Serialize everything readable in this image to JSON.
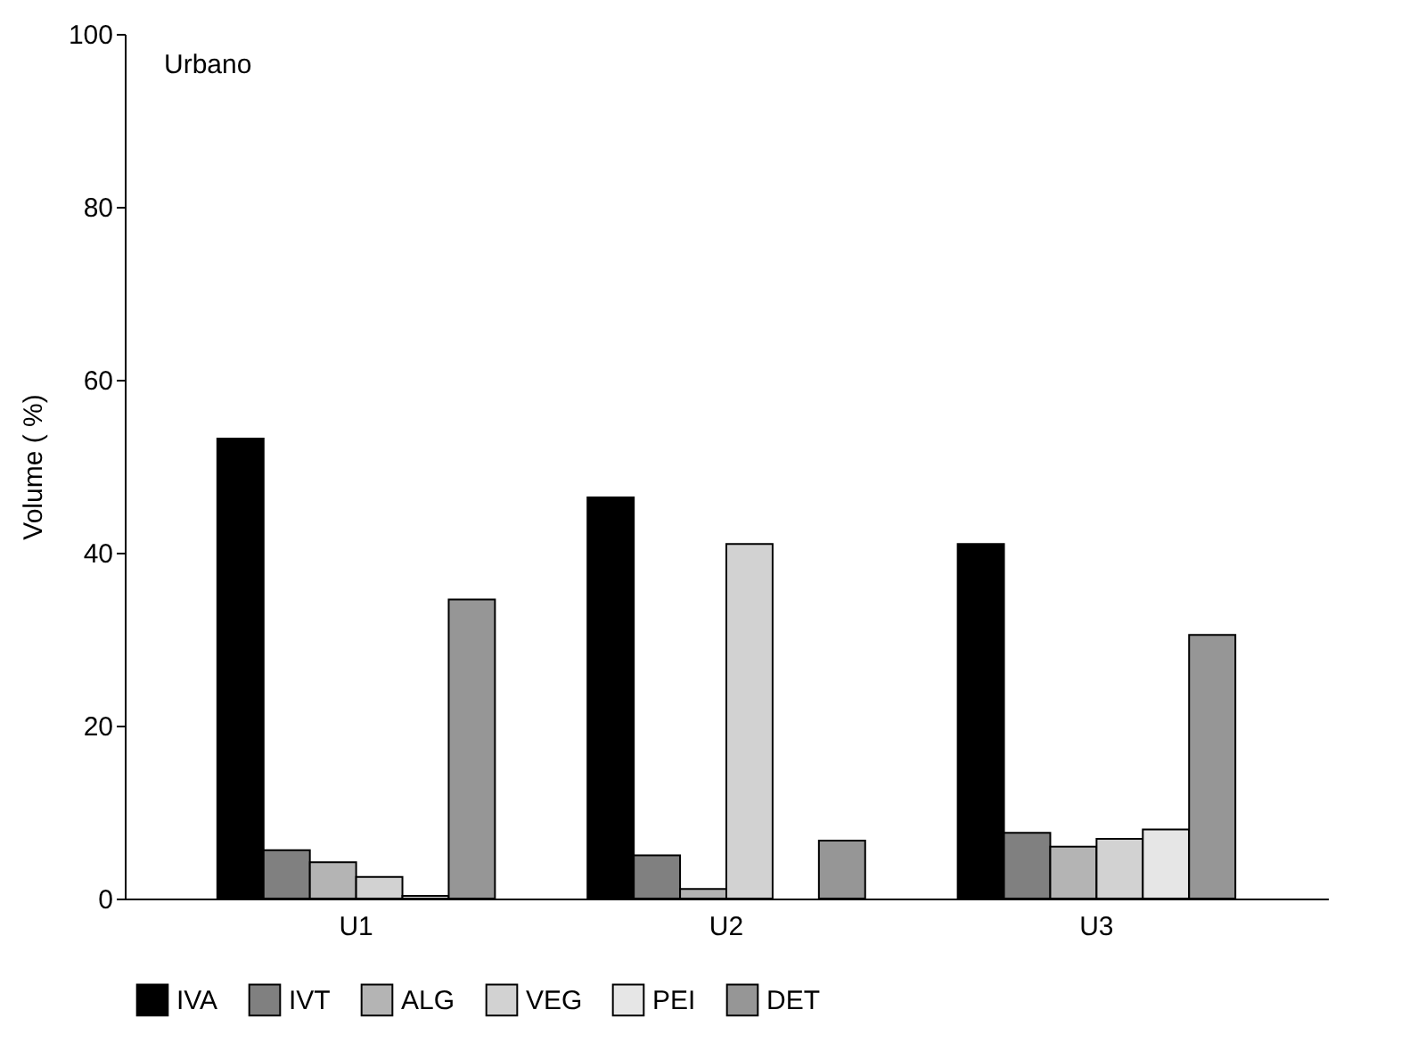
{
  "chart_data": {
    "type": "bar",
    "ylabel": "Volume ( %)",
    "annotations": [
      "Urbano"
    ],
    "categories": [
      "U1",
      "U2",
      "U3"
    ],
    "series": [
      {
        "name": "IVA",
        "color": "#000000",
        "values": [
          53.2,
          46.4,
          41.0
        ]
      },
      {
        "name": "IVT",
        "color": "#808080",
        "values": [
          5.6,
          5.0,
          7.6
        ]
      },
      {
        "name": "ALG",
        "color": "#b4b4b4",
        "values": [
          4.2,
          1.1,
          6.0
        ]
      },
      {
        "name": "VEG",
        "color": "#d2d2d2",
        "values": [
          2.5,
          41.0,
          6.9
        ]
      },
      {
        "name": "PEI",
        "color": "#e6e6e6",
        "values": [
          0.3,
          null,
          8.0
        ]
      },
      {
        "name": "DET",
        "color": "#969696",
        "values": [
          34.6,
          6.7,
          30.5
        ]
      }
    ],
    "ylim": [
      0,
      100
    ],
    "yticks": [
      0,
      20,
      40,
      60,
      80,
      100
    ],
    "grid": false,
    "legend": "bottom"
  }
}
